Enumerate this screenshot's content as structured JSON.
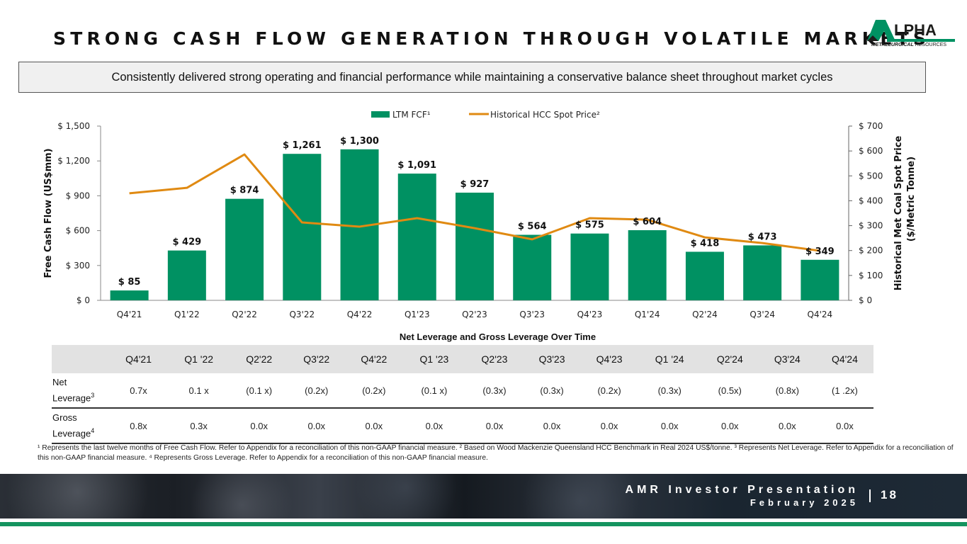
{
  "slide": {
    "title": "STRONG CASH FLOW GENERATION THROUGH VOLATILE MARKETS",
    "banner": "Consistently delivered strong operating and financial performance while maintaining a conservative balance sheet throughout market cycles",
    "logo": {
      "word": "LPHA",
      "sub_bold": "METALLURGICAL",
      "sub_rest": " RESOURCES"
    },
    "footer": {
      "presentation": "AMR Investor Presentation",
      "date": "February 2025",
      "page": "18"
    },
    "colors": {
      "bar": "#009162",
      "line": "#e08a12",
      "accent": "#14945f"
    }
  },
  "chart_data": {
    "type": "bar",
    "categories": [
      "Q4'21",
      "Q1'22",
      "Q2'22",
      "Q3'22",
      "Q4'22",
      "Q1'23",
      "Q2'23",
      "Q3'23",
      "Q4'23",
      "Q1'24",
      "Q2'24",
      "Q3'24",
      "Q4'24"
    ],
    "series": [
      {
        "name": "LTM FCF¹",
        "type": "bar",
        "axis": "left",
        "values": [
          85,
          429,
          874,
          1261,
          1300,
          1091,
          927,
          564,
          575,
          604,
          418,
          473,
          349
        ],
        "labels": [
          "$ 85",
          "$ 429",
          "$ 874",
          "$ 1,261",
          "$ 1,300",
          "$ 1,091",
          "$ 927",
          "$ 564",
          "$ 575",
          "$ 604",
          "$ 418",
          "$ 473",
          "$ 349"
        ]
      },
      {
        "name": "Historical HCC Spot Price²",
        "type": "line",
        "axis": "right",
        "values": [
          430,
          452,
          586,
          313,
          296,
          330,
          290,
          245,
          330,
          324,
          253,
          230,
          199
        ]
      }
    ],
    "ylabel": "Free Cash Flow (US$mm)",
    "y2label_line1": "Historical Met Coal Spot Price",
    "y2label_line2": "($/Metric Tonne)",
    "ylim": [
      0,
      1500
    ],
    "y2lim": [
      0,
      700
    ],
    "yticks": [
      "$ 0",
      "$ 300",
      "$ 600",
      "$ 900",
      "$ 1,200",
      "$ 1,500"
    ],
    "yticks_values": [
      0,
      300,
      600,
      900,
      1200,
      1500
    ],
    "y2ticks": [
      "$ 0",
      "$ 100",
      "$ 200",
      "$ 300",
      "$ 400",
      "$ 500",
      "$ 600",
      "$ 700"
    ],
    "y2ticks_values": [
      0,
      100,
      200,
      300,
      400,
      500,
      600,
      700
    ],
    "legend": "top-center",
    "grid": false
  },
  "table": {
    "title": "Net Leverage and Gross Leverage Over Time",
    "headers": [
      "Q4'21",
      "Q1 '22",
      "Q2'22",
      "Q3'22",
      "Q4'22",
      "Q1 '23",
      "Q2'23",
      "Q3'23",
      "Q4'23",
      "Q1 '24",
      "Q2'24",
      "Q3'24",
      "Q4'24"
    ],
    "rows": [
      {
        "label1": "Net",
        "label2": "Leverage",
        "sup": "3",
        "values": [
          "0.7x",
          "0.1 x",
          "(0.1 x)",
          "(0.2x)",
          "(0.2x)",
          "(0.1 x)",
          "(0.3x)",
          "(0.3x)",
          "(0.2x)",
          "(0.3x)",
          "(0.5x)",
          "(0.8x)",
          "(1 .2x)"
        ]
      },
      {
        "label1": "Gross",
        "label2": "Leverage",
        "sup": "4",
        "values": [
          "0.8x",
          "0.3x",
          "0.0x",
          "0.0x",
          "0.0x",
          "0.0x",
          "0.0x",
          "0.0x",
          "0.0x",
          "0.0x",
          "0.0x",
          "0.0x",
          "0.0x"
        ]
      }
    ]
  },
  "footnotes": "¹ Represents the last twelve months of Free Cash Flow. Refer to Appendix for a reconciliation of this non-GAAP financial measure.  ² Based on Wood Mackenzie Queensland HCC Benchmark in Real 2024 US$/tonne. ³ Represents Net Leverage. Refer to Appendix for a reconciliation of this non-GAAP financial measure. ⁴ Represents Gross Leverage. Refer to Appendix for a reconciliation of this non-GAAP financial measure."
}
